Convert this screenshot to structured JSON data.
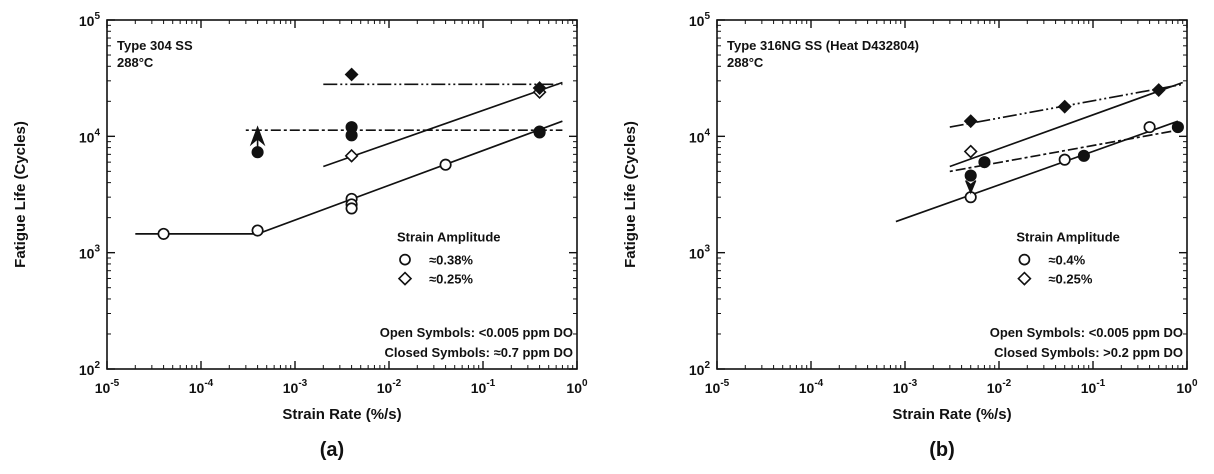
{
  "chart_data": [
    {
      "panel": "(a)",
      "type": "scatter",
      "xlabel": "Strain Rate (%/s)",
      "ylabel": "Fatigue Life (Cycles)",
      "x_scale": "log",
      "y_scale": "log",
      "xlim": [
        1e-05,
        1
      ],
      "ylim": [
        100,
        100000
      ],
      "x_ticks": [
        {
          "value": 1e-05,
          "base": "10",
          "exp": "-5"
        },
        {
          "value": 0.0001,
          "base": "10",
          "exp": "-4"
        },
        {
          "value": 0.001,
          "base": "10",
          "exp": "-3"
        },
        {
          "value": 0.01,
          "base": "10",
          "exp": "-2"
        },
        {
          "value": 0.1,
          "base": "10",
          "exp": "-1"
        },
        {
          "value": 1,
          "base": "10",
          "exp": "0"
        }
      ],
      "y_ticks": [
        {
          "value": 100,
          "base": "10",
          "exp": "2"
        },
        {
          "value": 1000,
          "base": "10",
          "exp": "3"
        },
        {
          "value": 10000,
          "base": "10",
          "exp": "4"
        },
        {
          "value": 100000,
          "base": "10",
          "exp": "5"
        }
      ],
      "material_lines": [
        "Type 304 SS",
        "288°C"
      ],
      "legend_title": "Strain Amplitude",
      "legend_items": [
        {
          "symbol": "circle",
          "label": "≈0.38%"
        },
        {
          "symbol": "diamond",
          "label": "≈0.25%"
        }
      ],
      "notes": [
        "Open Symbols: <0.005 ppm DO",
        "Closed Symbols: ≈0.7 ppm DO"
      ],
      "series": [
        {
          "marker": "circle",
          "filled": false,
          "x": [
            4e-05,
            0.0004,
            0.004,
            0.004,
            0.004,
            0.04,
            0.4
          ],
          "y": [
            1450,
            1550,
            2900,
            2600,
            2400,
            5700,
            10800
          ]
        },
        {
          "marker": "diamond",
          "filled": false,
          "x": [
            0.004,
            0.4
          ],
          "y": [
            6800,
            24000
          ]
        },
        {
          "marker": "circle",
          "filled": true,
          "x": [
            0.0004,
            0.004,
            0.004,
            0.4
          ],
          "y": [
            7300,
            12000,
            10200,
            11000
          ]
        },
        {
          "marker": "diamond",
          "filled": true,
          "x": [
            0.004,
            0.4
          ],
          "y": [
            34000,
            26000
          ]
        },
        {
          "marker": "arrow-up",
          "filled": true,
          "x": [
            0.0004
          ],
          "y": [
            9000
          ]
        }
      ],
      "fit_lines": [
        {
          "style": "solid",
          "x": [
            2e-05,
            0.0004,
            0.7
          ],
          "y": [
            1450,
            1450,
            13500
          ]
        },
        {
          "style": "solid",
          "x": [
            0.002,
            0.7
          ],
          "y": [
            5500,
            29000
          ]
        },
        {
          "style": "dotted-dash",
          "x": [
            0.0003,
            0.7
          ],
          "y": [
            11300,
            11300
          ]
        },
        {
          "style": "dash-dot-dot",
          "x": [
            0.002,
            0.7
          ],
          "y": [
            28000,
            28000
          ]
        }
      ],
      "panel_label": "(a)"
    },
    {
      "panel": "(b)",
      "type": "scatter",
      "xlabel": "Strain Rate (%/s)",
      "ylabel": "Fatigue Life (Cycles)",
      "x_scale": "log",
      "y_scale": "log",
      "xlim": [
        1e-05,
        1
      ],
      "ylim": [
        100,
        100000
      ],
      "x_ticks": [
        {
          "value": 1e-05,
          "base": "10",
          "exp": "-5"
        },
        {
          "value": 0.0001,
          "base": "10",
          "exp": "-4"
        },
        {
          "value": 0.001,
          "base": "10",
          "exp": "-3"
        },
        {
          "value": 0.01,
          "base": "10",
          "exp": "-2"
        },
        {
          "value": 0.1,
          "base": "10",
          "exp": "-1"
        },
        {
          "value": 1,
          "base": "10",
          "exp": "0"
        }
      ],
      "y_ticks": [
        {
          "value": 100,
          "base": "10",
          "exp": "2"
        },
        {
          "value": 1000,
          "base": "10",
          "exp": "3"
        },
        {
          "value": 10000,
          "base": "10",
          "exp": "4"
        },
        {
          "value": 100000,
          "base": "10",
          "exp": "5"
        }
      ],
      "material_lines": [
        "Type 316NG SS (Heat D432804)",
        "288°C"
      ],
      "legend_title": "Strain Amplitude",
      "legend_items": [
        {
          "symbol": "circle",
          "label": "≈0.4%"
        },
        {
          "symbol": "diamond",
          "label": "≈0.25%"
        }
      ],
      "notes": [
        "Open Symbols: <0.005 ppm DO",
        "Closed Symbols: >0.2 ppm DO"
      ],
      "series": [
        {
          "marker": "circle",
          "filled": false,
          "x": [
            0.005,
            0.05,
            0.4
          ],
          "y": [
            3000,
            6300,
            12000
          ]
        },
        {
          "marker": "diamond",
          "filled": false,
          "x": [
            0.005
          ],
          "y": [
            7400
          ]
        },
        {
          "marker": "circle",
          "filled": true,
          "x": [
            0.005,
            0.007,
            0.08,
            0.8
          ],
          "y": [
            4600,
            6000,
            6800,
            12000
          ]
        },
        {
          "marker": "diamond",
          "filled": true,
          "x": [
            0.005,
            0.05,
            0.5
          ],
          "y": [
            13500,
            18000,
            25000
          ]
        },
        {
          "marker": "arrow-down",
          "filled": true,
          "x": [
            0.005
          ],
          "y": [
            4000
          ]
        }
      ],
      "fit_lines": [
        {
          "style": "solid",
          "x": [
            0.0008,
            0.8
          ],
          "y": [
            1850,
            13500
          ]
        },
        {
          "style": "solid",
          "x": [
            0.003,
            0.9
          ],
          "y": [
            5500,
            29000
          ]
        },
        {
          "style": "dotted-dash",
          "x": [
            0.003,
            0.9
          ],
          "y": [
            5000,
            11500
          ]
        },
        {
          "style": "dash-dot-dot",
          "x": [
            0.003,
            0.9
          ],
          "y": [
            12000,
            28000
          ]
        }
      ],
      "panel_label": "(b)"
    }
  ]
}
